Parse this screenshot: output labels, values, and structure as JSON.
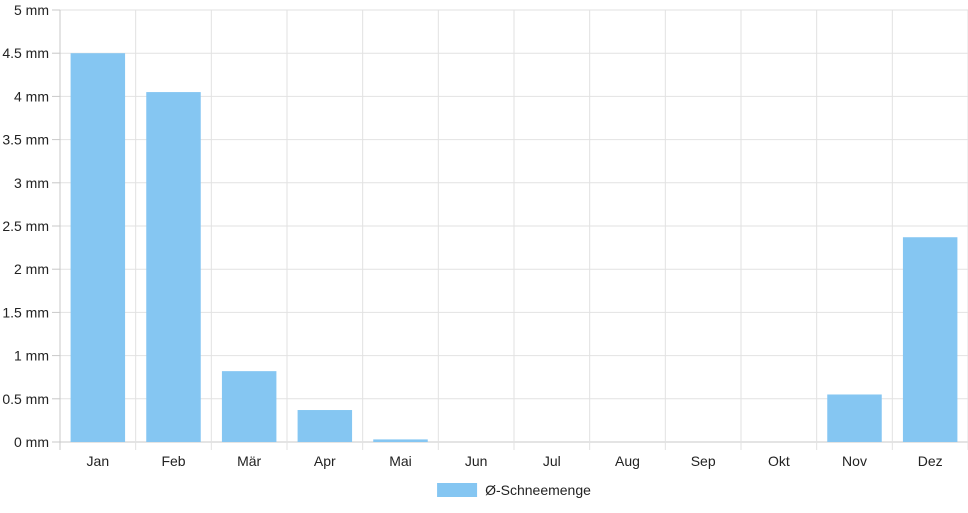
{
  "colors": {
    "bar_fill": "#85c6f2",
    "grid": "#e2e2e2",
    "axis": "#c8c8c8",
    "text": "#222222"
  },
  "chart_data": {
    "type": "bar",
    "categories": [
      "Jan",
      "Feb",
      "Mär",
      "Apr",
      "Mai",
      "Jun",
      "Jul",
      "Aug",
      "Sep",
      "Okt",
      "Nov",
      "Dez"
    ],
    "series": [
      {
        "name": "Ø-Schneemenge",
        "color": "#85c6f2",
        "values": [
          4.5,
          4.05,
          0.82,
          0.37,
          0.03,
          0,
          0,
          0,
          0,
          0,
          0.55,
          2.37
        ]
      }
    ],
    "ylim": [
      0,
      5
    ],
    "yticks": [
      0,
      0.5,
      1,
      1.5,
      2,
      2.5,
      3,
      3.5,
      4,
      4.5,
      5
    ],
    "ytick_labels": [
      "0 mm",
      "0.5 mm",
      "1 mm",
      "1.5 mm",
      "2 mm",
      "2.5 mm",
      "3 mm",
      "3.5 mm",
      "4 mm",
      "4.5 mm",
      "5 mm"
    ],
    "grid": true,
    "legend_position": "bottom"
  }
}
